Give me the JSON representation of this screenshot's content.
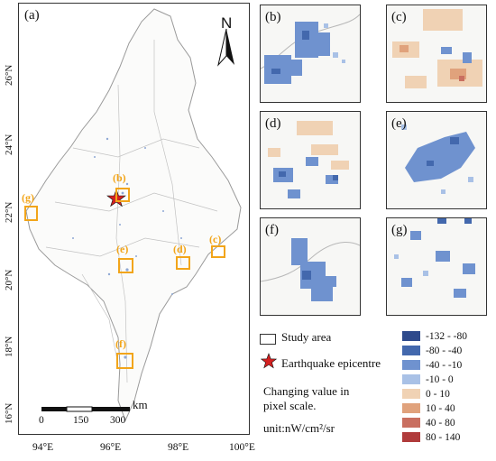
{
  "main": {
    "label": "(a)",
    "north": "N"
  },
  "lat_ticks": [
    "26°N",
    "24°N",
    "22°N",
    "20°N",
    "18°N",
    "16°N"
  ],
  "lon_ticks": [
    "94°E",
    "96°E",
    "98°E",
    "100°E"
  ],
  "scalebar": {
    "unit": "km",
    "labels": [
      "0",
      "150",
      "300"
    ]
  },
  "boxes": [
    "(g)",
    "(b)",
    "(e)",
    "(d)",
    "(c)",
    "(f)"
  ],
  "panels": [
    "(b)",
    "(c)",
    "(d)",
    "(e)",
    "(f)",
    "(g)"
  ],
  "legend": {
    "study_area": "Study area",
    "epicentre": "Earthquake epicentre",
    "changing": "Changing value in",
    "pixel_scale": "pixel scale.",
    "unit": "unit:nW/cm²/sr",
    "classes": [
      {
        "label": "-132 - -80",
        "color": "#2e4a8c"
      },
      {
        "label": "-80 - -40",
        "color": "#4368ad"
      },
      {
        "label": "-40 - -10",
        "color": "#6f92cf"
      },
      {
        "label": "-10 - 0",
        "color": "#a9c1e6"
      },
      {
        "label": "0 - 10",
        "color": "#f0d2b4"
      },
      {
        "label": "10 - 40",
        "color": "#e0a27c"
      },
      {
        "label": "40 - 80",
        "color": "#c96f60"
      },
      {
        "label": "80 - 140",
        "color": "#b03b3b"
      }
    ]
  }
}
